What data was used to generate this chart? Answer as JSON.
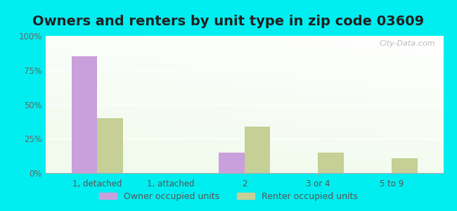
{
  "title": "Owners and renters by unit type in zip code 03609",
  "categories": [
    "1, detached",
    "1, attached",
    "2",
    "3 or 4",
    "5 to 9"
  ],
  "owner_values": [
    85,
    0,
    15,
    0,
    0
  ],
  "renter_values": [
    40,
    0,
    34,
    15,
    11
  ],
  "owner_color": "#c9a0dc",
  "renter_color": "#c5cf96",
  "outer_background": "#00eef0",
  "ylim": [
    0,
    100
  ],
  "yticks": [
    0,
    25,
    50,
    75,
    100
  ],
  "ytick_labels": [
    "0%",
    "25%",
    "50%",
    "75%",
    "100%"
  ],
  "bar_width": 0.35,
  "legend_owner": "Owner occupied units",
  "legend_renter": "Renter occupied units",
  "title_fontsize": 14,
  "watermark": "City-Data.com"
}
